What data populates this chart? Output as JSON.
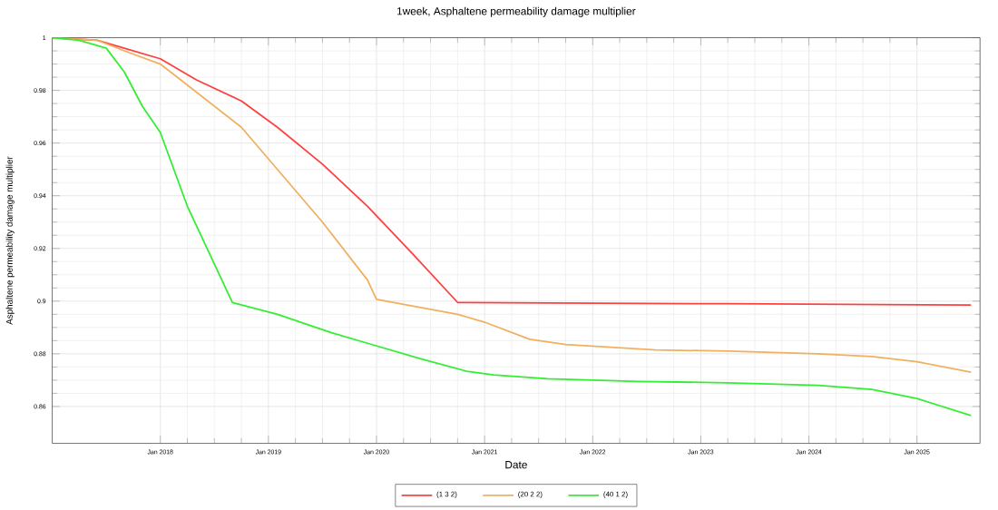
{
  "chart_data": {
    "type": "line",
    "title": "1week, Asphaltene permeability damage multiplier",
    "xlabel": "Date",
    "ylabel": "Asphaltene permeability damage multiplier",
    "xlim": [
      "2017-01",
      "2025-08"
    ],
    "xticks": [
      {
        "value": "2018-01",
        "label": "Jan 2018"
      },
      {
        "value": "2019-01",
        "label": "Jan 2019"
      },
      {
        "value": "2020-01",
        "label": "Jan 2020"
      },
      {
        "value": "2021-01",
        "label": "Jan 2021"
      },
      {
        "value": "2022-01",
        "label": "Jan 2022"
      },
      {
        "value": "2023-01",
        "label": "Jan 2023"
      },
      {
        "value": "2024-01",
        "label": "Jan 2024"
      },
      {
        "value": "2025-01",
        "label": "Jan 2025"
      }
    ],
    "ylim": [
      0.846,
      1
    ],
    "yticks": [
      0.86,
      0.88,
      0.9,
      0.92,
      0.94,
      0.96,
      0.98,
      1
    ],
    "grid": true,
    "legend": "bottom",
    "series": [
      {
        "name": "(1 3 2)",
        "color": "#ff4040",
        "x": [
          "2017-01",
          "2017-06",
          "2017-09",
          "2018-01",
          "2018-05",
          "2018-10",
          "2019-02",
          "2019-07",
          "2019-12",
          "2020-05",
          "2020-10",
          "2021-08",
          "2023-04",
          "2025-07"
        ],
        "values": [
          1,
          0.999,
          0.996,
          0.992,
          0.984,
          0.976,
          0.966,
          0.952,
          0.936,
          0.918,
          0.8995,
          0.8993,
          0.899,
          0.8985
        ]
      },
      {
        "name": "(20 2 2)",
        "color": "#f0b060",
        "x": [
          "2017-01",
          "2017-06",
          "2017-09",
          "2018-01",
          "2018-10",
          "2019-07",
          "2019-12",
          "2020-01",
          "2020-10",
          "2021-01",
          "2021-06",
          "2021-10",
          "2022-08",
          "2023-04",
          "2024-02",
          "2024-08",
          "2025-01",
          "2025-07"
        ],
        "values": [
          1,
          0.999,
          0.995,
          0.99,
          0.966,
          0.93,
          0.908,
          0.9007,
          0.895,
          0.892,
          0.8855,
          0.8835,
          0.8815,
          0.881,
          0.88,
          0.879,
          0.877,
          0.873
        ]
      },
      {
        "name": "(40 1 2)",
        "color": "#33ee33",
        "x": [
          "2017-01",
          "2017-04",
          "2017-07",
          "2017-09",
          "2017-11",
          "2018-01",
          "2018-04",
          "2018-09",
          "2019-02",
          "2019-08",
          "2019-12",
          "2020-06",
          "2020-11",
          "2021-02",
          "2021-08",
          "2022-06",
          "2023-04",
          "2024-02",
          "2024-08",
          "2025-01",
          "2025-07"
        ],
        "values": [
          1,
          0.999,
          0.996,
          0.987,
          0.974,
          0.964,
          0.936,
          0.8995,
          0.895,
          0.888,
          0.884,
          0.878,
          0.8734,
          0.872,
          0.8705,
          0.8695,
          0.869,
          0.868,
          0.8665,
          0.863,
          0.8566
        ]
      }
    ]
  }
}
